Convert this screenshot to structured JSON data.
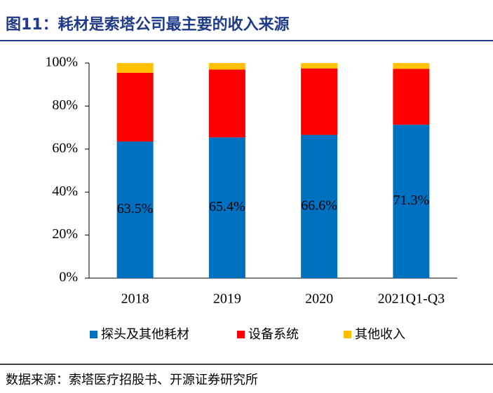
{
  "chart_data": {
    "type": "stacked_bar",
    "title": "图11：耗材是索塔公司最主要的收入来源",
    "source": "数据来源：索塔医疗招股书、开源证券研究所",
    "categories": [
      "2018",
      "2019",
      "2020",
      "2021Q1-Q3"
    ],
    "series": [
      {
        "name": "探头及其他耗材",
        "color": "#0070c0",
        "values": [
          63.5,
          65.4,
          66.6,
          71.3
        ],
        "value_labels": [
          "63.5%",
          "65.4%",
          "66.6%",
          "71.3%"
        ]
      },
      {
        "name": "设备系统",
        "color": "#ff0000",
        "values": [
          32.0,
          31.6,
          30.9,
          26.0
        ]
      },
      {
        "name": "其他收入",
        "color": "#ffc000",
        "values": [
          4.5,
          3.0,
          2.5,
          2.7
        ]
      }
    ],
    "ylim": [
      0,
      100
    ],
    "yticks": [
      {
        "value": 0,
        "label": "0%"
      },
      {
        "value": 20,
        "label": "20%"
      },
      {
        "value": 40,
        "label": "40%"
      },
      {
        "value": 60,
        "label": "60%"
      },
      {
        "value": 80,
        "label": "80%"
      },
      {
        "value": 100,
        "label": "100%"
      }
    ],
    "legend": "bottom"
  }
}
